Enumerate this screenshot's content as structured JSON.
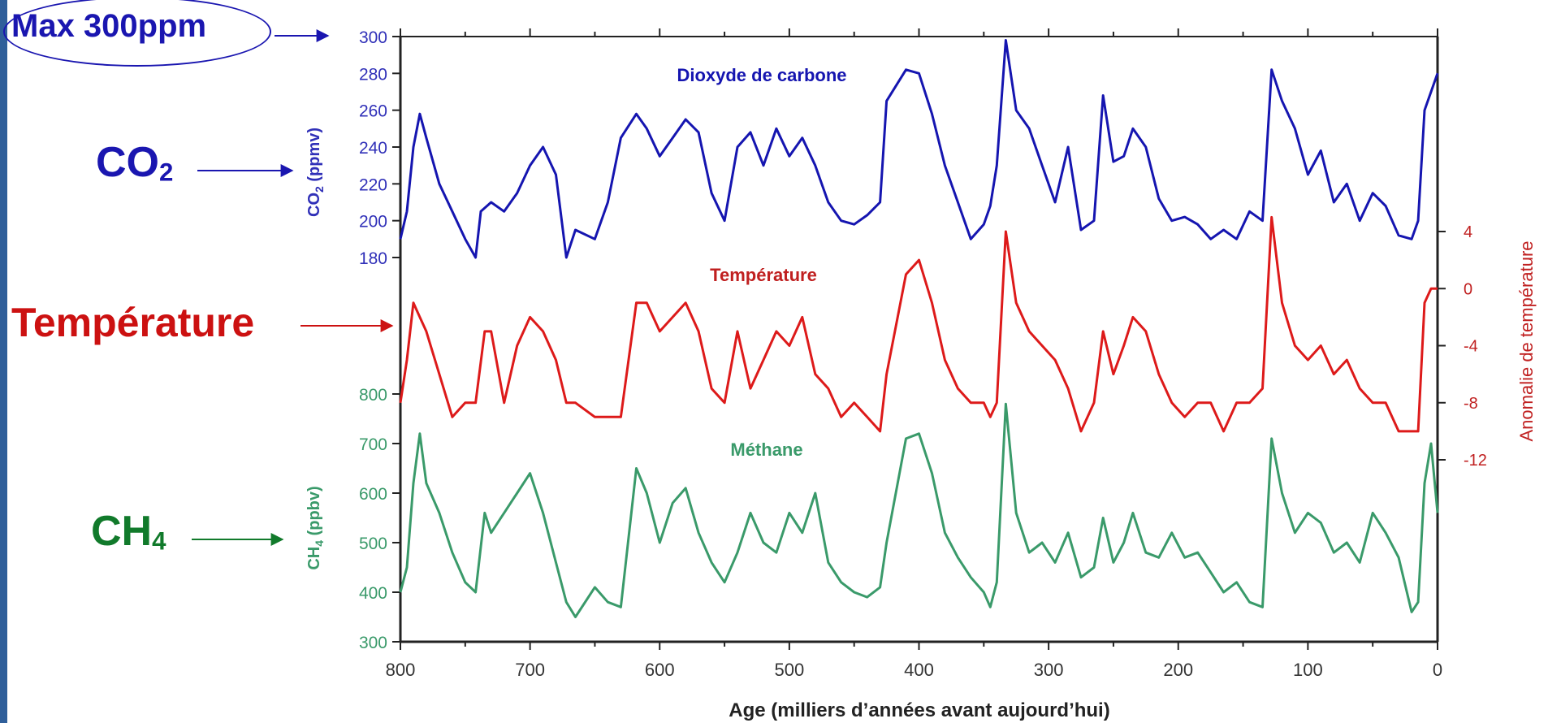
{
  "annotations": {
    "max_label": "Max 300ppm",
    "co2_main": "CO",
    "co2_sub": "2",
    "temp_label": "Température",
    "ch4_main": "CH",
    "ch4_sub": "4"
  },
  "colors": {
    "co2": "#1515b0",
    "temperature": "#dd1a1a",
    "methane": "#3a9a6a",
    "annotation_blue": "#1a16b0",
    "annotation_red": "#cc1111",
    "annotation_green": "#117a2b",
    "left_bar": "#2f5f9a"
  },
  "chart_data": {
    "type": "line",
    "xlabel": "Age (milliers d’années avant aujourd’hui)",
    "x_ticks": [
      800,
      700,
      600,
      500,
      400,
      300,
      200,
      100,
      0
    ],
    "xlim": [
      800,
      0
    ],
    "series": [
      {
        "name": "Dioxyde de carbone",
        "axis_label": "CO",
        "axis_label_sub": "2",
        "axis_label_tail": " (ppmv)",
        "ylim": [
          170,
          300
        ],
        "y_ticks": [
          180,
          200,
          220,
          240,
          260,
          280,
          300
        ],
        "x": [
          800,
          795,
          790,
          785,
          780,
          770,
          760,
          750,
          742,
          738,
          730,
          720,
          710,
          700,
          690,
          680,
          672,
          665,
          650,
          640,
          630,
          618,
          610,
          600,
          590,
          580,
          570,
          560,
          550,
          540,
          530,
          520,
          510,
          500,
          490,
          480,
          470,
          460,
          450,
          440,
          430,
          425,
          410,
          400,
          390,
          380,
          370,
          360,
          350,
          345,
          340,
          333,
          325,
          315,
          305,
          295,
          285,
          275,
          265,
          258,
          250,
          242,
          235,
          225,
          215,
          205,
          195,
          185,
          175,
          165,
          155,
          145,
          135,
          128,
          120,
          110,
          100,
          90,
          80,
          70,
          60,
          50,
          40,
          30,
          20,
          15,
          10,
          5,
          0
        ],
        "values": [
          190,
          205,
          240,
          258,
          245,
          220,
          205,
          190,
          180,
          205,
          210,
          205,
          215,
          230,
          240,
          225,
          180,
          195,
          190,
          210,
          245,
          258,
          250,
          235,
          245,
          255,
          248,
          215,
          200,
          240,
          248,
          230,
          250,
          235,
          245,
          230,
          210,
          200,
          198,
          203,
          210,
          265,
          282,
          280,
          258,
          230,
          210,
          190,
          198,
          208,
          230,
          298,
          260,
          250,
          230,
          210,
          240,
          195,
          200,
          268,
          232,
          235,
          250,
          240,
          212,
          200,
          202,
          198,
          190,
          195,
          190,
          205,
          200,
          282,
          265,
          250,
          225,
          238,
          210,
          220,
          200,
          215,
          208,
          192,
          190,
          200,
          260,
          270,
          280
        ]
      },
      {
        "name": "Température",
        "axis_label": "Anomalie de température",
        "ylim": [
          -14,
          6
        ],
        "y_ticks": [
          4,
          0,
          -4,
          -8,
          -12
        ],
        "x": [
          800,
          795,
          790,
          785,
          780,
          770,
          760,
          750,
          742,
          735,
          730,
          720,
          710,
          700,
          690,
          680,
          672,
          665,
          650,
          640,
          630,
          618,
          610,
          600,
          590,
          580,
          570,
          560,
          550,
          540,
          530,
          520,
          510,
          500,
          490,
          480,
          470,
          460,
          450,
          440,
          430,
          425,
          410,
          400,
          390,
          380,
          370,
          360,
          350,
          345,
          340,
          333,
          325,
          315,
          305,
          295,
          285,
          275,
          265,
          258,
          250,
          242,
          235,
          225,
          215,
          205,
          195,
          185,
          175,
          165,
          155,
          145,
          135,
          128,
          120,
          110,
          100,
          90,
          80,
          70,
          60,
          50,
          40,
          30,
          20,
          15,
          10,
          5,
          0
        ],
        "values": [
          -8,
          -5,
          -1,
          -2,
          -3,
          -6,
          -9,
          -8,
          -8,
          -3,
          -3,
          -8,
          -4,
          -2,
          -3,
          -5,
          -8,
          -8,
          -9,
          -9,
          -9,
          -1,
          -1,
          -3,
          -2,
          -1,
          -3,
          -7,
          -8,
          -3,
          -7,
          -5,
          -3,
          -4,
          -2,
          -6,
          -7,
          -9,
          -8,
          -9,
          -10,
          -6,
          1,
          2,
          -1,
          -5,
          -7,
          -8,
          -8,
          -9,
          -8,
          4,
          -1,
          -3,
          -4,
          -5,
          -7,
          -10,
          -8,
          -3,
          -6,
          -4,
          -2,
          -3,
          -6,
          -8,
          -9,
          -8,
          -8,
          -10,
          -8,
          -8,
          -7,
          5,
          -1,
          -4,
          -5,
          -4,
          -6,
          -5,
          -7,
          -8,
          -8,
          -10,
          -10,
          -10,
          -1,
          0,
          0
        ]
      },
      {
        "name": "Méthane",
        "axis_label": "CH",
        "axis_label_sub": "4",
        "axis_label_tail": " (ppbv)",
        "ylim": [
          300,
          800
        ],
        "y_ticks": [
          300,
          400,
          500,
          600,
          700,
          800
        ],
        "x": [
          800,
          795,
          790,
          785,
          780,
          770,
          760,
          750,
          742,
          735,
          730,
          720,
          710,
          700,
          690,
          680,
          672,
          665,
          650,
          640,
          630,
          618,
          610,
          600,
          590,
          580,
          570,
          560,
          550,
          540,
          530,
          520,
          510,
          500,
          490,
          480,
          470,
          460,
          450,
          440,
          430,
          425,
          410,
          400,
          390,
          380,
          370,
          360,
          350,
          345,
          340,
          333,
          325,
          315,
          305,
          295,
          285,
          275,
          265,
          258,
          250,
          242,
          235,
          225,
          215,
          205,
          195,
          185,
          175,
          165,
          155,
          145,
          135,
          128,
          120,
          110,
          100,
          90,
          80,
          70,
          60,
          50,
          40,
          30,
          20,
          15,
          10,
          5,
          0
        ],
        "values": [
          400,
          450,
          620,
          720,
          620,
          560,
          480,
          420,
          400,
          560,
          520,
          560,
          600,
          640,
          560,
          460,
          380,
          350,
          410,
          380,
          370,
          650,
          600,
          500,
          580,
          610,
          520,
          460,
          420,
          480,
          560,
          500,
          480,
          560,
          520,
          600,
          460,
          420,
          400,
          390,
          410,
          500,
          710,
          720,
          640,
          520,
          470,
          430,
          400,
          370,
          420,
          780,
          560,
          480,
          500,
          460,
          520,
          430,
          450,
          550,
          460,
          500,
          560,
          480,
          470,
          520,
          470,
          480,
          440,
          400,
          420,
          380,
          370,
          710,
          600,
          520,
          560,
          540,
          480,
          500,
          460,
          560,
          520,
          470,
          360,
          380,
          620,
          700,
          560
        ]
      }
    ],
    "annotations": [
      {
        "text": "Dioxyde de carbone",
        "series": "Dioxyde de carbone"
      },
      {
        "text": "Température",
        "series": "Température"
      },
      {
        "text": "Méthane",
        "series": "Méthane"
      }
    ],
    "grid": false,
    "legend": "none"
  }
}
